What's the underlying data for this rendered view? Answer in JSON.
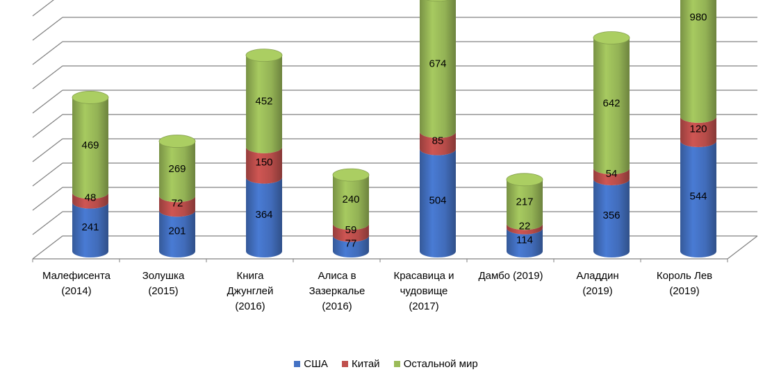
{
  "chart_data": {
    "type": "bar",
    "subtype": "stacked-3d-cylinder",
    "categories": [
      [
        "Малефисента",
        "(2014)"
      ],
      [
        "Золушка",
        "(2015)"
      ],
      [
        "Книга",
        "Джунглей",
        "(2016)"
      ],
      [
        "Алиса в",
        "Зазеркалье",
        "(2016)"
      ],
      [
        "Красавица и",
        "чудовище",
        "(2017)"
      ],
      [
        "Дамбо (2019)"
      ],
      [
        "Аладдин",
        "(2019)"
      ],
      [
        "Король Лев",
        "(2019)"
      ]
    ],
    "series": [
      {
        "name": "США",
        "color": "#4472C4",
        "values": [
          241,
          201,
          364,
          77,
          504,
          114,
          356,
          544
        ]
      },
      {
        "name": "Китай",
        "color": "#C0504D",
        "values": [
          48,
          72,
          150,
          59,
          85,
          22,
          54,
          120
        ]
      },
      {
        "name": "Остальной мир",
        "color": "#9BBB59",
        "values": [
          469,
          269,
          452,
          240,
          674,
          217,
          642,
          980
        ]
      }
    ],
    "ylim": [
      0,
      1800
    ],
    "gridlines": true,
    "legend_position": "bottom",
    "title": "",
    "xlabel": "",
    "ylabel": ""
  }
}
